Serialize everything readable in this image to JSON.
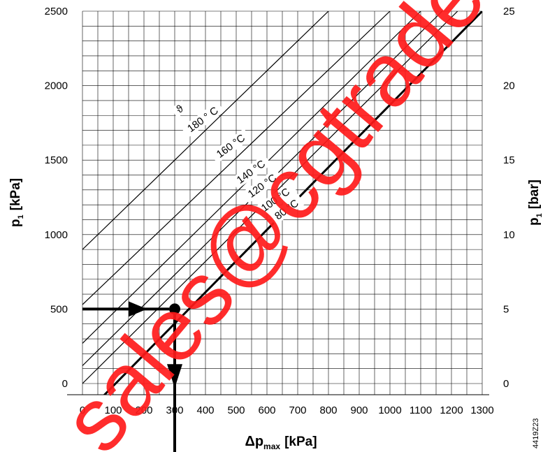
{
  "chart_data": {
    "type": "line",
    "xlabel": "Δp",
    "xlabel_sub": "max",
    "xlabel_unit": "[kPa]",
    "ylabel_main": "p",
    "ylabel_sub": "1",
    "ylabel_left_unit": "[kPa]",
    "ylabel_right_unit": "[bar]",
    "xlim": [
      0,
      1300
    ],
    "ylim": [
      0,
      2500
    ],
    "x_ticks": [
      "0",
      "100",
      "200",
      "300",
      "400",
      "500",
      "600",
      "700",
      "800",
      "900",
      "1000",
      "1100",
      "1200",
      "1300"
    ],
    "y_ticks_left": [
      "0",
      "500",
      "1000",
      "1500",
      "2000",
      "2500"
    ],
    "y_ticks_right": [
      "0",
      "5",
      "10",
      "15",
      "20",
      "25"
    ],
    "grid": true,
    "temperature_symbol": "ϑ",
    "series": [
      {
        "name": "180 ° C",
        "x": [
          0,
          800
        ],
        "y": [
          900,
          2500
        ],
        "bold": false
      },
      {
        "name": "160 °C",
        "x": [
          0,
          1000
        ],
        "y": [
          530,
          2500
        ],
        "bold": false
      },
      {
        "name": "140 °C",
        "x": [
          0,
          1100
        ],
        "y": [
          270,
          2500
        ],
        "bold": false
      },
      {
        "name": "120 °C",
        "x": [
          0,
          1170
        ],
        "y": [
          120,
          2500
        ],
        "bold": false
      },
      {
        "name": "100 °C",
        "x": [
          0,
          1220
        ],
        "y": [
          0,
          2500
        ],
        "bold": false
      },
      {
        "name": "80 °C",
        "x": [
          60,
          1300
        ],
        "y": [
          -100,
          2500
        ],
        "bold": true
      }
    ],
    "example": {
      "p1": 500,
      "dp_max": 300
    }
  },
  "watermark": "sales@cgtrader",
  "figure_id": "4419Z23"
}
